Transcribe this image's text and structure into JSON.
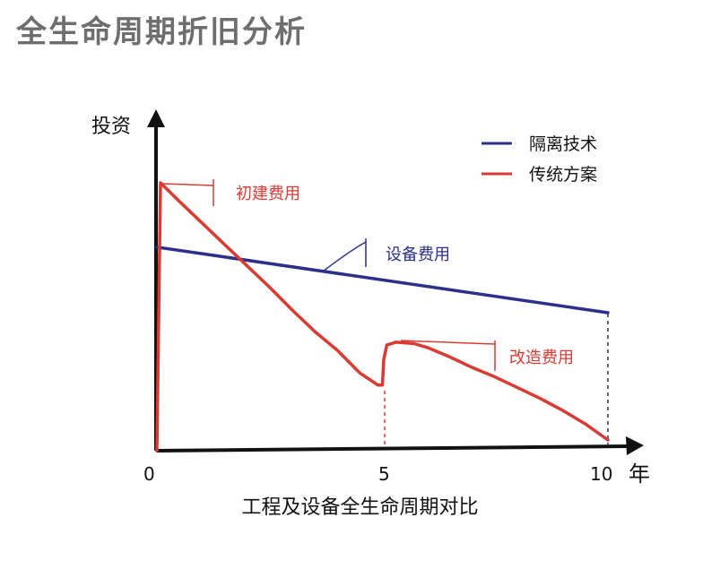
{
  "page": {
    "title": "全生命周期折旧分析"
  },
  "chart_data": {
    "type": "line",
    "title": "工程及设备全生命周期对比",
    "xlabel": "年",
    "ylabel": "投资",
    "xlim": [
      0,
      10
    ],
    "ylim": [
      0,
      100
    ],
    "x_ticks": [
      "0",
      "5",
      "10"
    ],
    "grid": false,
    "legend_position": "top-right",
    "series": [
      {
        "name": "隔离技术",
        "color": "#2c2f8c",
        "points": [
          [
            0,
            76
          ],
          [
            10,
            51.5
          ]
        ]
      },
      {
        "name": "传统方案",
        "color": "#d93a32",
        "points": [
          [
            0,
            0
          ],
          [
            0.08,
            100
          ],
          [
            0.5,
            93
          ],
          [
            1.0,
            85
          ],
          [
            1.5,
            77
          ],
          [
            2.0,
            69
          ],
          [
            2.5,
            61
          ],
          [
            3.0,
            52.5
          ],
          [
            3.5,
            44.5
          ],
          [
            4.0,
            37.5
          ],
          [
            4.5,
            29
          ],
          [
            4.9,
            24.5
          ],
          [
            5.0,
            24.5
          ],
          [
            5.03,
            34
          ],
          [
            5.1,
            39.5
          ],
          [
            5.3,
            40.5
          ],
          [
            5.7,
            40
          ],
          [
            6.0,
            38.5
          ],
          [
            6.5,
            35
          ],
          [
            7.0,
            31
          ],
          [
            7.5,
            27.5
          ],
          [
            8.0,
            23.5
          ],
          [
            8.5,
            19.5
          ],
          [
            9.0,
            15
          ],
          [
            9.5,
            10
          ],
          [
            10.0,
            4
          ]
        ]
      }
    ],
    "annotations": [
      {
        "text": "初建费用",
        "color": "#d93a32"
      },
      {
        "text": "设备费用",
        "color": "#2c2f8c"
      },
      {
        "text": "改造费用",
        "color": "#d93a32"
      }
    ]
  }
}
